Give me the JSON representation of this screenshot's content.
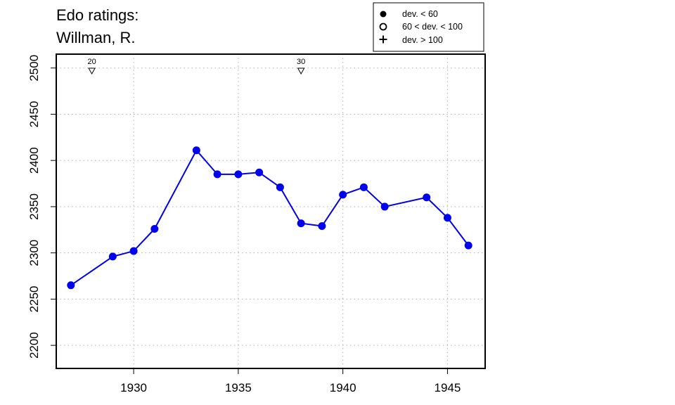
{
  "chart_data": {
    "type": "line",
    "title_lines": [
      "Edo ratings:",
      "Willman, R."
    ],
    "xlabel": "",
    "ylabel": "",
    "xlim": [
      1926.3,
      1946.8
    ],
    "ylim": [
      2175,
      2515
    ],
    "x_ticks": [
      1930,
      1935,
      1940,
      1945
    ],
    "y_ticks": [
      2200,
      2250,
      2300,
      2350,
      2400,
      2450,
      2500
    ],
    "grid": true,
    "line_color": "#0000ee",
    "series": [
      {
        "x": [
          1927,
          1929,
          1930,
          1931,
          1933,
          1934,
          1935,
          1936,
          1937,
          1938,
          1939,
          1940,
          1941,
          1942,
          1944,
          1945,
          1946
        ],
        "y": [
          2265,
          2296,
          2302,
          2326,
          2411,
          2385,
          2385,
          2387,
          2371,
          2332,
          2329,
          2363,
          2371,
          2350,
          2360,
          2338,
          2308
        ]
      }
    ],
    "markers": [
      {
        "x": 1928,
        "label": "20"
      },
      {
        "x": 1938,
        "label": "30"
      }
    ],
    "legend": {
      "position": "top-right",
      "entries": [
        {
          "symbol": "filled-circle",
          "label": "dev. < 60"
        },
        {
          "symbol": "open-circle",
          "label": "60 < dev. < 100"
        },
        {
          "symbol": "plus",
          "label": "dev. > 100"
        }
      ]
    }
  }
}
